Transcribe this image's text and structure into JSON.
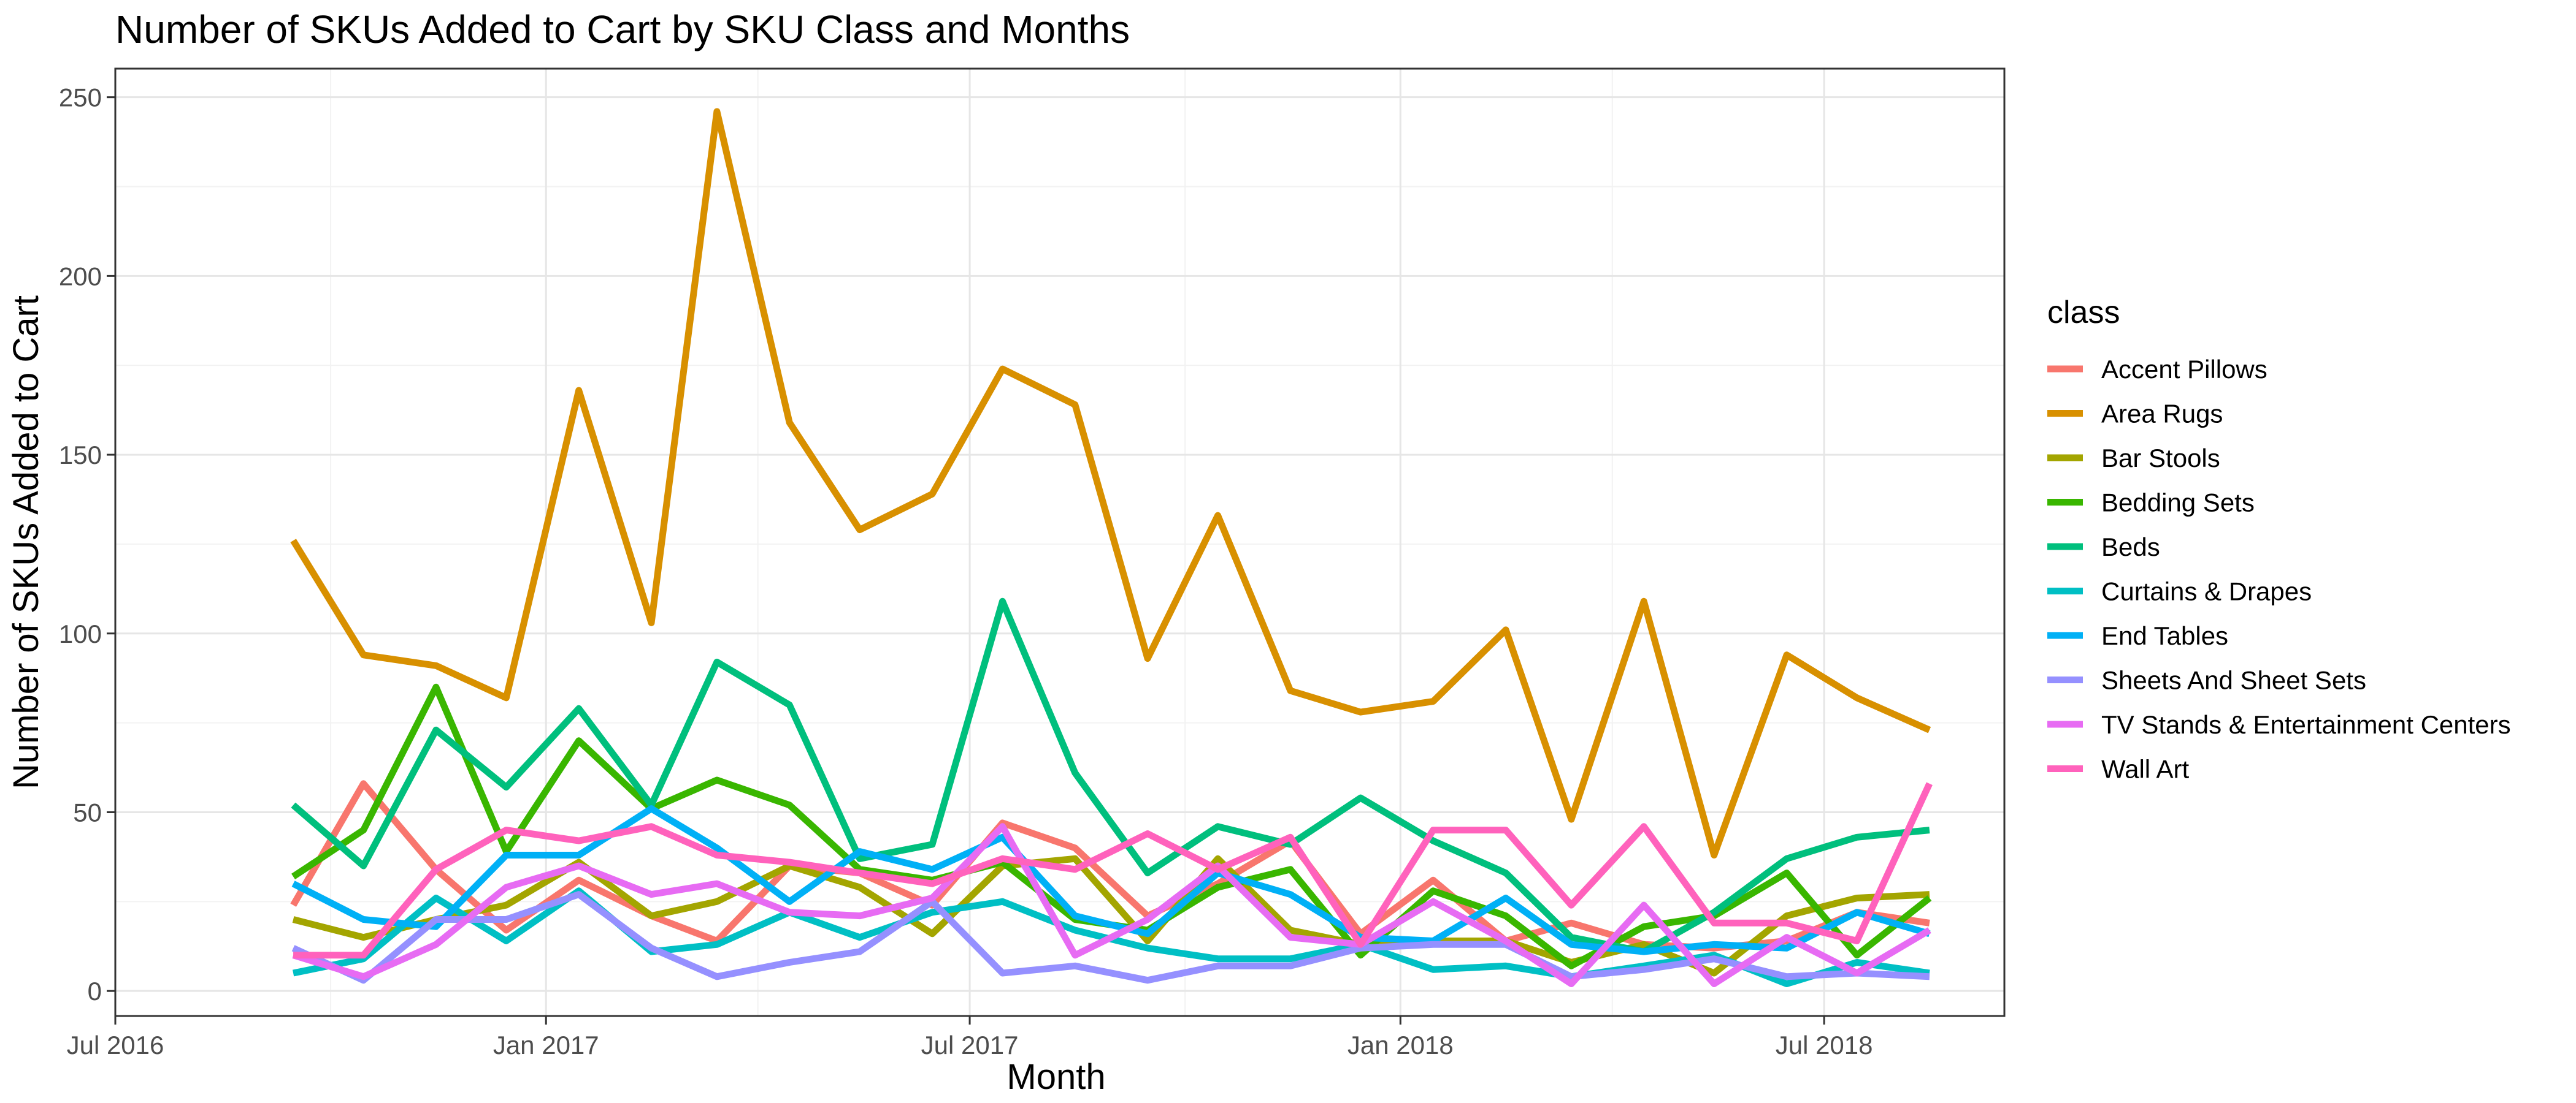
{
  "chart_data": {
    "type": "line",
    "title": "Number of SKUs Added to Cart by SKU Class and Months",
    "xlabel": "Month",
    "ylabel": "Number of SKUs Added to Cart",
    "x": [
      "2016-09",
      "2016-10",
      "2016-11",
      "2016-12",
      "2017-01",
      "2017-02",
      "2017-03",
      "2017-04",
      "2017-05",
      "2017-06",
      "2017-07",
      "2017-08",
      "2017-09",
      "2017-10",
      "2017-11",
      "2017-12",
      "2018-01",
      "2018-02",
      "2018-03",
      "2018-04",
      "2018-05",
      "2018-06",
      "2018-07",
      "2018-08"
    ],
    "x_range": [
      "2016-07-01",
      "2018-09-16"
    ],
    "x_ticks": [
      {
        "date": "2016-07-01",
        "label": "Jul 2016"
      },
      {
        "date": "2017-01-01",
        "label": "Jan 2017"
      },
      {
        "date": "2017-07-01",
        "label": "Jul 2017"
      },
      {
        "date": "2018-01-01",
        "label": "Jan 2018"
      },
      {
        "date": "2018-07-01",
        "label": "Jul 2018"
      }
    ],
    "ylim": [
      -7,
      258
    ],
    "y_ticks": [
      0,
      50,
      100,
      150,
      200,
      250
    ],
    "grid": true,
    "legend_title": "class",
    "legend_position": "right",
    "series": [
      {
        "name": "Accent Pillows",
        "color": "#F8766D",
        "values": [
          24,
          58,
          34,
          17,
          31,
          21,
          14,
          35,
          33,
          24,
          47,
          40,
          21,
          30,
          42,
          16,
          31,
          14,
          19,
          13,
          12,
          14,
          22,
          19
        ]
      },
      {
        "name": "Area Rugs",
        "color": "#D89000",
        "values": [
          126,
          94,
          91,
          82,
          168,
          103,
          246,
          159,
          129,
          139,
          174,
          164,
          93,
          133,
          84,
          78,
          81,
          101,
          48,
          109,
          38,
          94,
          82,
          73
        ]
      },
      {
        "name": "Bar Stools",
        "color": "#A3A500",
        "values": [
          20,
          15,
          20,
          24,
          36,
          21,
          25,
          35,
          29,
          16,
          35,
          37,
          14,
          37,
          17,
          13,
          14,
          14,
          8,
          13,
          5,
          21,
          26,
          27
        ]
      },
      {
        "name": "Bedding Sets",
        "color": "#39B600",
        "values": [
          32,
          45,
          85,
          39,
          70,
          51,
          59,
          52,
          34,
          31,
          36,
          20,
          17,
          29,
          34,
          10,
          28,
          21,
          7,
          18,
          21,
          33,
          10,
          26
        ]
      },
      {
        "name": "Beds",
        "color": "#00BF7D",
        "values": [
          52,
          35,
          73,
          57,
          79,
          52,
          92,
          80,
          37,
          41,
          109,
          61,
          33,
          46,
          41,
          54,
          42,
          33,
          15,
          11,
          22,
          37,
          43,
          45
        ]
      },
      {
        "name": "Curtains & Drapes",
        "color": "#00BFC4",
        "values": [
          5,
          9,
          26,
          14,
          28,
          11,
          13,
          22,
          15,
          22,
          25,
          17,
          12,
          9,
          9,
          13,
          6,
          7,
          4,
          7,
          10,
          2,
          8,
          5
        ]
      },
      {
        "name": "End Tables",
        "color": "#00B0F6",
        "values": [
          30,
          20,
          18,
          38,
          38,
          51,
          40,
          25,
          39,
          34,
          43,
          21,
          16,
          33,
          27,
          15,
          14,
          26,
          13,
          11,
          13,
          12,
          22,
          16
        ]
      },
      {
        "name": "Sheets And Sheet Sets",
        "color": "#9590FF",
        "values": [
          12,
          3,
          20,
          20,
          27,
          12,
          4,
          8,
          11,
          25,
          5,
          7,
          3,
          7,
          7,
          12,
          13,
          13,
          4,
          6,
          9,
          4,
          5,
          4
        ]
      },
      {
        "name": "TV Stands & Entertainment Centers",
        "color": "#E76BF3",
        "values": [
          10,
          4,
          13,
          29,
          35,
          27,
          30,
          22,
          21,
          26,
          46,
          10,
          20,
          35,
          15,
          13,
          25,
          14,
          2,
          24,
          2,
          15,
          5,
          17
        ]
      },
      {
        "name": "Wall Art",
        "color": "#FF62BC",
        "values": [
          10,
          10,
          34,
          45,
          42,
          46,
          38,
          36,
          33,
          30,
          37,
          34,
          44,
          34,
          43,
          13,
          45,
          45,
          24,
          46,
          19,
          19,
          14,
          58
        ]
      }
    ]
  }
}
